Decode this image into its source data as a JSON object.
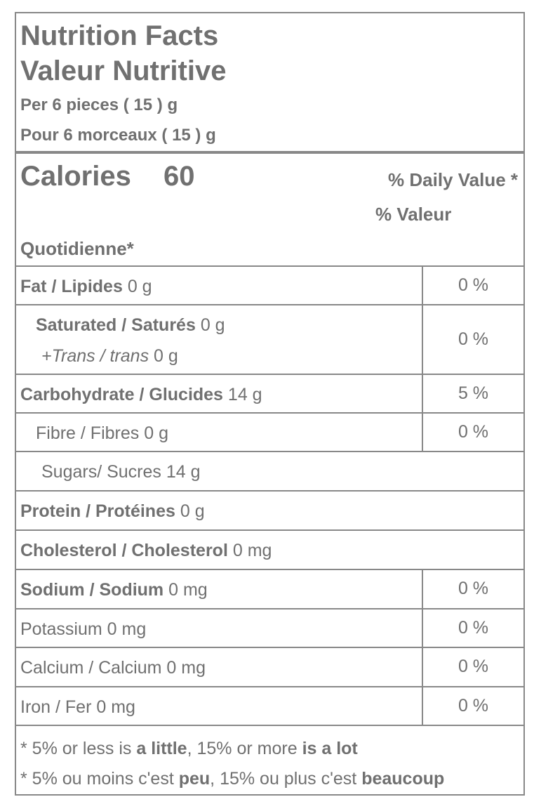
{
  "header": {
    "title": "Nutrition Facts",
    "title_fr": "Valeur Nutritive",
    "serving": "Per 6 pieces ( 15 ) g",
    "serving_fr": "Pour 6 morceaux ( 15 ) g"
  },
  "calories": {
    "label": "Calories",
    "value": 60,
    "dv_heading": "% Daily Value *",
    "dv_heading_fr_1": "% Valeur",
    "dv_heading_fr_2": "Quotidienne*"
  },
  "nutrients": [
    {
      "name": "Fat / Lipides",
      "amount": "0 g",
      "dv": "0 %"
    },
    {
      "name": "Saturated / Saturés",
      "amount": "0 g",
      "sub_name": "+Trans / trans",
      "sub_amount": "0 g",
      "dv": "0 %"
    },
    {
      "name": "Carbohydrate / Glucides",
      "amount": "14 g",
      "dv": "5 %"
    },
    {
      "name": "Fibre / Fibres",
      "amount": "0 g",
      "dv": "0 %"
    },
    {
      "name": "Sugars/ Sucres",
      "amount": "14 g"
    },
    {
      "name": "Protein / Protéines",
      "amount": "0 g"
    },
    {
      "name": "Cholesterol / Cholesterol",
      "amount": "0 mg"
    },
    {
      "name": "Sodium / Sodium",
      "amount": "0 mg",
      "dv": "0 %"
    },
    {
      "name": "Potassium",
      "amount": "0 mg",
      "dv": "0 %"
    },
    {
      "name": "Calcium / Calcium",
      "amount": "0 mg",
      "dv": "0 %"
    },
    {
      "name": "Iron / Fer",
      "amount": "0 mg",
      "dv": "0 %"
    }
  ],
  "footnote": [
    [
      "* 5% or less is",
      "a little",
      ", 15% or more",
      "is a lot"
    ],
    [
      "* 5% ou moins c'est",
      "peu",
      ", 15% ou plus c'est",
      "beaucoup"
    ]
  ]
}
